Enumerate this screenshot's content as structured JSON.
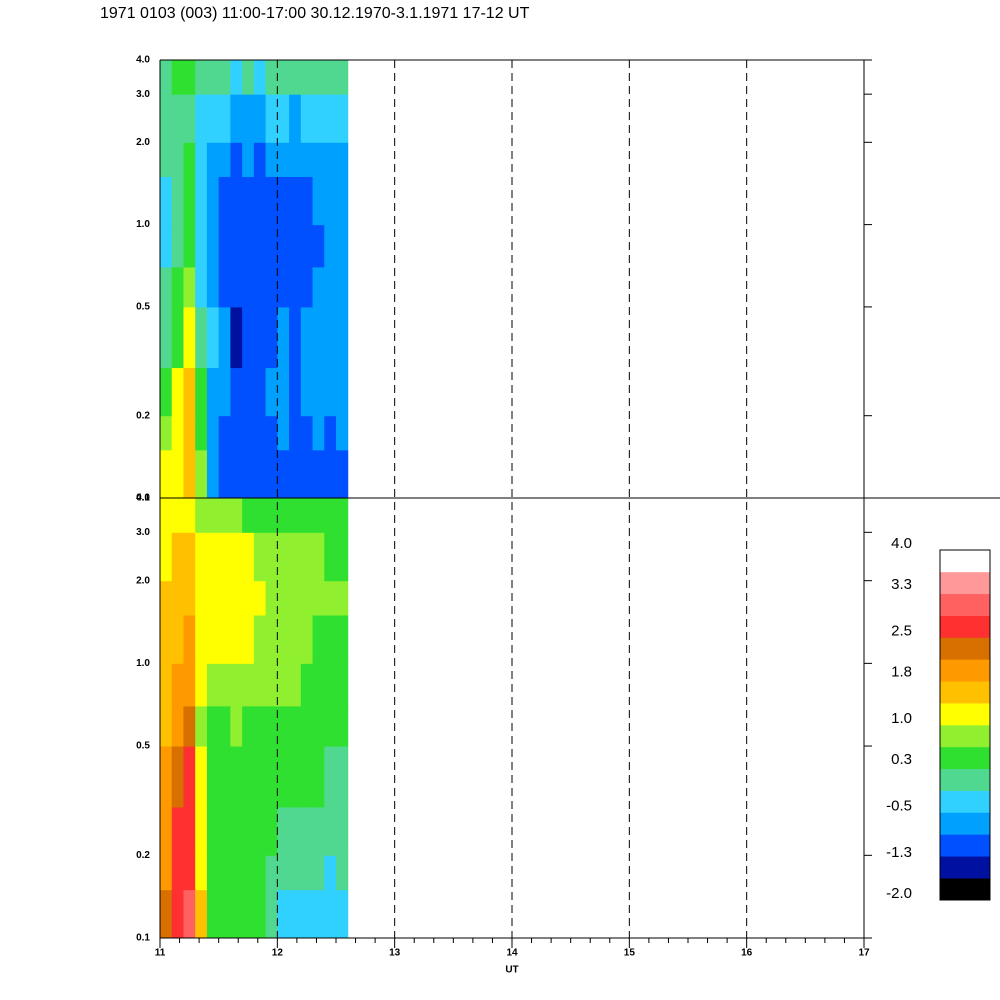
{
  "chart_data": {
    "type": "heatmap",
    "title": "1971 0103 (003) 11:00-17:00 30.12.1970-3.1.1971  17-12 UT",
    "xlabel": "UT",
    "xlim": [
      11,
      17
    ],
    "xticks": [
      11,
      12,
      13,
      14,
      15,
      16,
      17
    ],
    "ylim": [
      0.1,
      4.0
    ],
    "log_y": true,
    "yticks": [
      0.1,
      0.2,
      0.5,
      {
        "value": 1,
        "label": "1.0"
      },
      {
        "value": 2,
        "label": "2.0"
      },
      {
        "value": 3,
        "label": "3.0"
      },
      {
        "value": 4,
        "label": "4.0"
      }
    ],
    "x_edges": [
      11.0,
      11.1,
      11.2,
      11.3,
      11.4,
      11.5,
      11.6,
      11.7,
      11.8,
      11.9,
      12.0,
      12.1,
      12.2,
      12.3,
      12.4,
      12.5,
      12.6
    ],
    "y_edges": [
      0.1,
      0.15,
      0.2,
      0.3,
      0.5,
      0.7,
      1.0,
      1.5,
      2.0,
      3.0,
      4.0
    ],
    "panels": [
      {
        "values": [
          [
            1.0,
            1.2,
            1.5,
            0.8,
            -0.8,
            -0.9,
            -0.9,
            -1.0,
            -1.0,
            -0.9,
            -0.9,
            -1.0,
            -0.9,
            -0.9,
            -0.9,
            -0.9
          ],
          [
            0.8,
            1.2,
            1.5,
            0.5,
            -0.8,
            -0.9,
            -1.2,
            -1.0,
            -1.1,
            -0.9,
            -0.8,
            -1.0,
            -0.9,
            -0.8,
            -0.9,
            -0.8
          ],
          [
            0.6,
            1.0,
            1.5,
            0.3,
            -0.6,
            -0.8,
            -1.1,
            -1.0,
            -1.0,
            -0.8,
            -0.8,
            -0.9,
            -0.8,
            -0.8,
            -0.7,
            -0.7
          ],
          [
            0.2,
            0.6,
            1.2,
            0.0,
            -0.5,
            -0.8,
            -1.3,
            -1.1,
            -1.0,
            -0.9,
            -0.8,
            -0.9,
            -0.8,
            -0.7,
            -0.7,
            -0.7
          ],
          [
            0.0,
            0.3,
            0.8,
            -0.2,
            -0.6,
            -0.9,
            -1.2,
            -1.0,
            -1.1,
            -1.0,
            -0.9,
            -1.0,
            -0.9,
            -0.8,
            -0.8,
            -0.8
          ],
          [
            -0.2,
            0.1,
            0.5,
            -0.3,
            -0.7,
            -0.9,
            -1.2,
            -1.1,
            -1.2,
            -1.0,
            -1.0,
            -1.0,
            -0.9,
            -0.9,
            -0.8,
            -0.8
          ],
          [
            -0.2,
            0.0,
            0.4,
            -0.4,
            -0.7,
            -0.9,
            -1.1,
            -1.0,
            -1.1,
            -1.0,
            -0.9,
            -1.0,
            -0.9,
            -0.8,
            -0.8,
            -0.8
          ],
          [
            -0.1,
            0.0,
            0.3,
            -0.3,
            -0.6,
            -0.7,
            -0.9,
            -0.8,
            -0.9,
            -0.8,
            -0.8,
            -0.8,
            -0.7,
            -0.7,
            -0.6,
            -0.6
          ],
          [
            0.0,
            0.1,
            0.2,
            -0.2,
            -0.4,
            -0.5,
            -0.6,
            -0.6,
            -0.6,
            -0.5,
            -0.5,
            -0.6,
            -0.5,
            -0.5,
            -0.4,
            -0.4
          ],
          [
            0.2,
            0.3,
            0.3,
            0.1,
            0.0,
            -0.1,
            -0.2,
            -0.1,
            -0.2,
            -0.1,
            -0.1,
            -0.1,
            0.0,
            0.0,
            0.0,
            0.1
          ]
        ]
      },
      {
        "values": [
          [
            2.2,
            2.8,
            3.0,
            1.5,
            0.5,
            0.4,
            0.5,
            0.4,
            0.3,
            0.2,
            -0.2,
            -0.3,
            -0.2,
            -0.3,
            -0.3,
            -0.2
          ],
          [
            2.0,
            2.6,
            2.8,
            1.2,
            0.5,
            0.4,
            0.4,
            0.4,
            0.3,
            0.2,
            0.0,
            -0.1,
            0.0,
            -0.1,
            -0.2,
            -0.1
          ],
          [
            1.8,
            2.5,
            2.6,
            1.0,
            0.4,
            0.4,
            0.5,
            0.5,
            0.4,
            0.3,
            0.2,
            0.2,
            0.1,
            0.1,
            0.0,
            0.0
          ],
          [
            1.8,
            2.2,
            2.5,
            1.0,
            0.5,
            0.5,
            0.6,
            0.5,
            0.5,
            0.4,
            0.4,
            0.4,
            0.3,
            0.3,
            0.2,
            0.2
          ],
          [
            1.6,
            2.0,
            2.2,
            0.9,
            0.6,
            0.6,
            0.7,
            0.6,
            0.6,
            0.5,
            0.5,
            0.5,
            0.4,
            0.4,
            0.4,
            0.4
          ],
          [
            1.5,
            1.8,
            2.0,
            1.0,
            0.8,
            0.8,
            0.9,
            0.9,
            0.8,
            0.7,
            0.7,
            0.7,
            0.6,
            0.5,
            0.5,
            0.5
          ],
          [
            1.5,
            1.6,
            1.8,
            1.1,
            1.0,
            1.0,
            1.0,
            1.0,
            0.9,
            0.8,
            0.8,
            0.8,
            0.7,
            0.6,
            0.6,
            0.6
          ],
          [
            1.4,
            1.5,
            1.6,
            1.1,
            1.0,
            1.0,
            1.1,
            1.0,
            1.0,
            0.9,
            0.9,
            0.8,
            0.8,
            0.7,
            0.7,
            0.7
          ],
          [
            1.3,
            1.4,
            1.5,
            1.1,
            1.0,
            1.0,
            1.0,
            1.0,
            0.9,
            0.9,
            0.8,
            0.8,
            0.7,
            0.7,
            0.6,
            0.6
          ],
          [
            1.0,
            1.0,
            1.1,
            0.9,
            0.8,
            0.7,
            0.7,
            0.6,
            0.6,
            0.5,
            0.5,
            0.5,
            0.4,
            0.4,
            0.4,
            0.4
          ]
        ]
      }
    ],
    "colorbar": {
      "lim": [
        -2.0,
        4.0
      ],
      "ticks": [
        {
          "value": -2,
          "label": "-2.0"
        },
        -1.3,
        -0.5,
        0.3,
        {
          "value": 1,
          "label": "1.0"
        },
        1.8,
        2.5,
        3.3,
        {
          "value": 4,
          "label": "4.0"
        }
      ],
      "colors": [
        "#000000",
        "#0010a0",
        "#0050ff",
        "#00a0ff",
        "#30d0ff",
        "#50d890",
        "#30e030",
        "#90f030",
        "#ffff00",
        "#ffc000",
        "#ff9900",
        "#d87000",
        "#ff3030",
        "#ff6060",
        "#ff9999",
        "#ffffff"
      ]
    }
  }
}
